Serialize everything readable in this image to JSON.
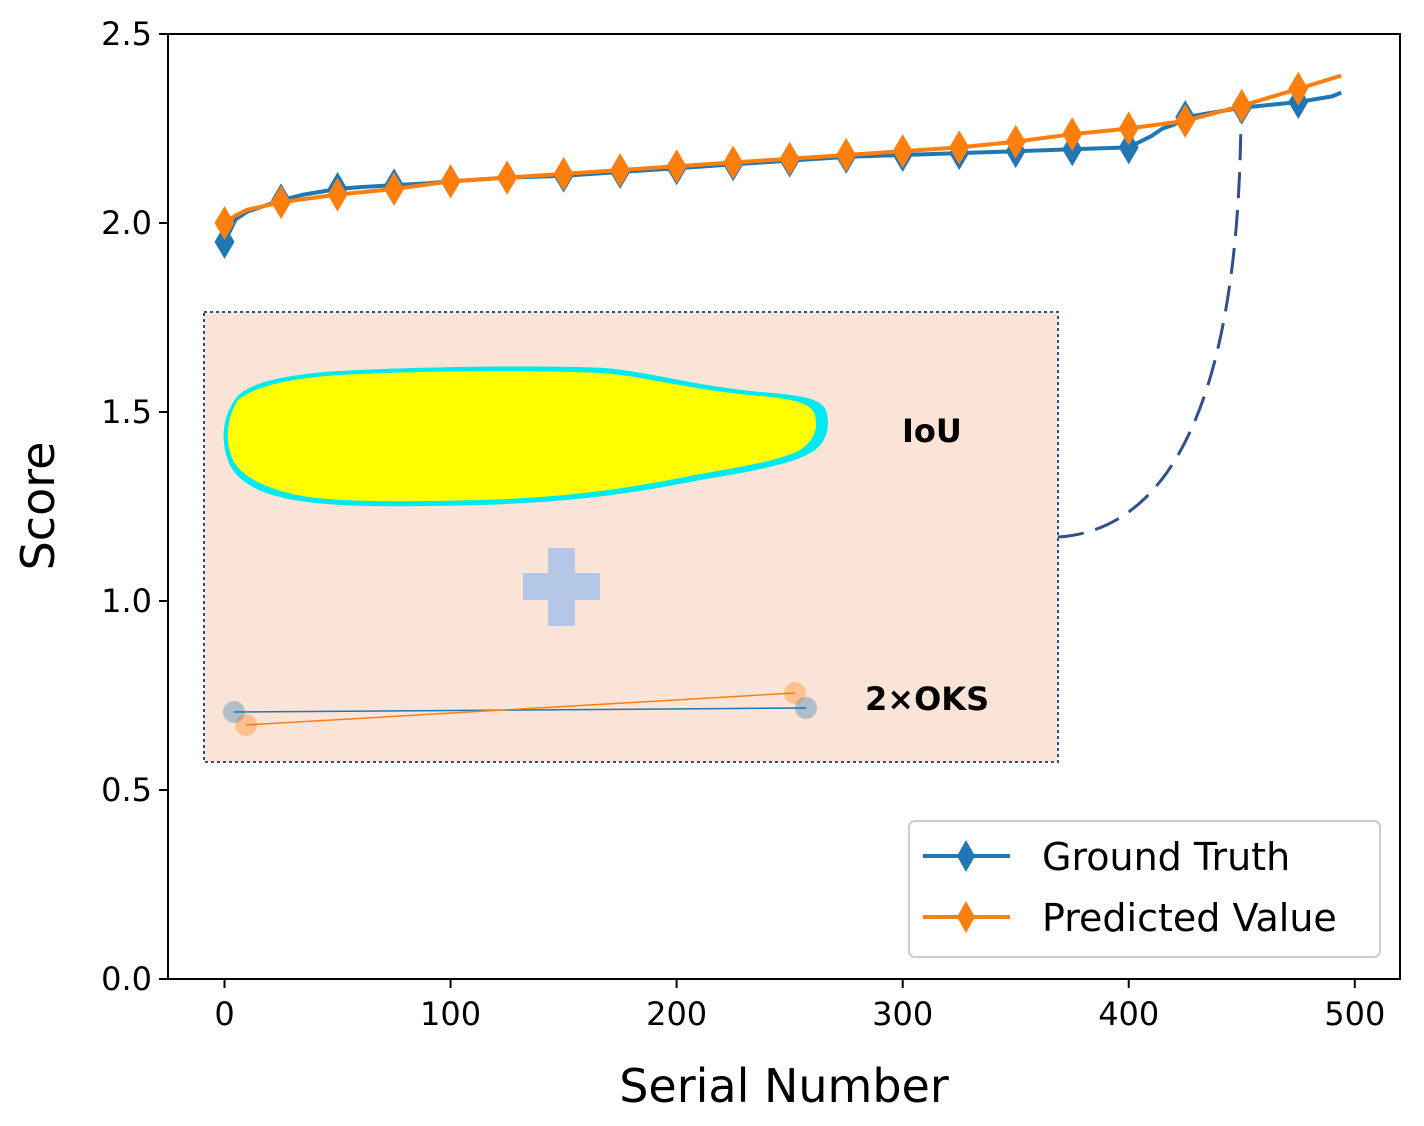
{
  "chart_data": {
    "type": "line",
    "xlabel": "Serial Number",
    "ylabel": "Score",
    "xlim": [
      -25,
      520
    ],
    "ylim": [
      0.0,
      2.5
    ],
    "xticks": [
      0,
      100,
      200,
      300,
      400,
      500
    ],
    "yticks": [
      0.0,
      0.5,
      1.0,
      1.5,
      2.0,
      2.5
    ],
    "xtick_labels": [
      "0",
      "100",
      "200",
      "300",
      "400",
      "500"
    ],
    "ytick_labels": [
      "0.0",
      "0.5",
      "1.0",
      "1.5",
      "2.0",
      "2.5"
    ],
    "grid": false,
    "legend_position": "lower-right",
    "series": [
      {
        "name": "Ground Truth",
        "color": "#1f77b4",
        "marker": "thin_diamond",
        "x": [
          0,
          5,
          10,
          15,
          25,
          35,
          50,
          60,
          75,
          90,
          100,
          125,
          150,
          175,
          200,
          225,
          250,
          275,
          300,
          325,
          350,
          375,
          400,
          410,
          415,
          420,
          425,
          440,
          450,
          475,
          490,
          494
        ],
        "y": [
          1.95,
          2.01,
          2.03,
          2.04,
          2.06,
          2.075,
          2.09,
          2.095,
          2.1,
          2.105,
          2.11,
          2.12,
          2.125,
          2.135,
          2.145,
          2.155,
          2.165,
          2.175,
          2.18,
          2.185,
          2.19,
          2.195,
          2.2,
          2.23,
          2.25,
          2.26,
          2.28,
          2.295,
          2.305,
          2.32,
          2.335,
          2.345
        ],
        "marker_x": [
          0,
          25,
          50,
          75,
          100,
          125,
          150,
          175,
          200,
          225,
          250,
          275,
          300,
          325,
          350,
          375,
          400,
          425,
          450,
          475
        ],
        "marker_y": [
          1.95,
          2.06,
          2.09,
          2.1,
          2.11,
          2.12,
          2.125,
          2.135,
          2.145,
          2.155,
          2.165,
          2.175,
          2.18,
          2.185,
          2.19,
          2.195,
          2.2,
          2.28,
          2.305,
          2.32
        ]
      },
      {
        "name": "Predicted Value",
        "color": "#ff7f0e",
        "marker": "thin_diamond",
        "x": [
          0,
          5,
          10,
          25,
          50,
          75,
          100,
          125,
          150,
          175,
          200,
          225,
          250,
          275,
          300,
          325,
          350,
          375,
          400,
          425,
          450,
          475,
          494
        ],
        "y": [
          2.0,
          2.02,
          2.035,
          2.055,
          2.075,
          2.09,
          2.11,
          2.12,
          2.13,
          2.14,
          2.15,
          2.16,
          2.17,
          2.18,
          2.19,
          2.2,
          2.215,
          2.235,
          2.25,
          2.27,
          2.31,
          2.355,
          2.39
        ],
        "marker_x": [
          0,
          25,
          50,
          75,
          100,
          125,
          150,
          175,
          200,
          225,
          250,
          275,
          300,
          325,
          350,
          375,
          400,
          425,
          450,
          475
        ],
        "marker_y": [
          2.0,
          2.055,
          2.075,
          2.09,
          2.11,
          2.12,
          2.13,
          2.14,
          2.15,
          2.16,
          2.17,
          2.18,
          2.19,
          2.2,
          2.215,
          2.235,
          2.25,
          2.27,
          2.31,
          2.355
        ]
      }
    ],
    "inset": {
      "iou_label": "IoU",
      "oks_label": "2×OKS",
      "background_color": "#fae3d7",
      "border_color": "#2f4f8f",
      "mask_color": "#ffff00",
      "mask_edge_color": "#00e8f0",
      "plus_color": "#b4c7e7",
      "connector_color": "#2f4f8f"
    }
  }
}
